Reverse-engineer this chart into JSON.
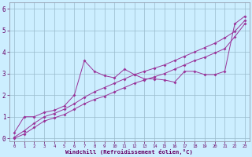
{
  "xlabel": "Windchill (Refroidissement éolien,°C)",
  "bg_color": "#cceeff",
  "line_color": "#993399",
  "grid_color": "#99bbcc",
  "xlim": [
    -0.5,
    23.5
  ],
  "ylim": [
    -0.15,
    6.3
  ],
  "xticks": [
    0,
    1,
    2,
    3,
    4,
    5,
    6,
    7,
    8,
    9,
    10,
    11,
    12,
    13,
    14,
    15,
    16,
    17,
    18,
    19,
    20,
    21,
    22,
    23
  ],
  "yticks": [
    0,
    1,
    2,
    3,
    4,
    5,
    6
  ],
  "series1_x": [
    0,
    1,
    2,
    3,
    4,
    5,
    6,
    7,
    8,
    9,
    10,
    11,
    12,
    13,
    14,
    15,
    16,
    17,
    18,
    19,
    20,
    21,
    22,
    23
  ],
  "series1_y": [
    0.25,
    1.0,
    1.0,
    1.2,
    1.3,
    1.5,
    2.0,
    3.6,
    3.1,
    2.9,
    2.8,
    3.2,
    2.95,
    2.75,
    2.75,
    2.7,
    2.6,
    3.1,
    3.1,
    2.95,
    2.95,
    3.1,
    5.3,
    5.65
  ],
  "series2_x": [
    0,
    1,
    2,
    3,
    4,
    5,
    6,
    7,
    8,
    9,
    10,
    11,
    12,
    13,
    14,
    15,
    16,
    17,
    18,
    19,
    20,
    21,
    22,
    23
  ],
  "series2_y": [
    0.05,
    0.35,
    0.7,
    1.0,
    1.15,
    1.35,
    1.6,
    1.9,
    2.15,
    2.35,
    2.55,
    2.75,
    2.95,
    3.1,
    3.25,
    3.4,
    3.6,
    3.8,
    4.0,
    4.2,
    4.4,
    4.65,
    4.95,
    5.45
  ],
  "series3_x": [
    0,
    1,
    2,
    3,
    4,
    5,
    6,
    7,
    8,
    9,
    10,
    11,
    12,
    13,
    14,
    15,
    16,
    17,
    18,
    19,
    20,
    21,
    22,
    23
  ],
  "series3_y": [
    0.0,
    0.2,
    0.5,
    0.8,
    0.95,
    1.1,
    1.35,
    1.6,
    1.8,
    1.95,
    2.15,
    2.35,
    2.55,
    2.7,
    2.85,
    3.0,
    3.2,
    3.4,
    3.6,
    3.75,
    3.95,
    4.15,
    4.7,
    5.3
  ]
}
